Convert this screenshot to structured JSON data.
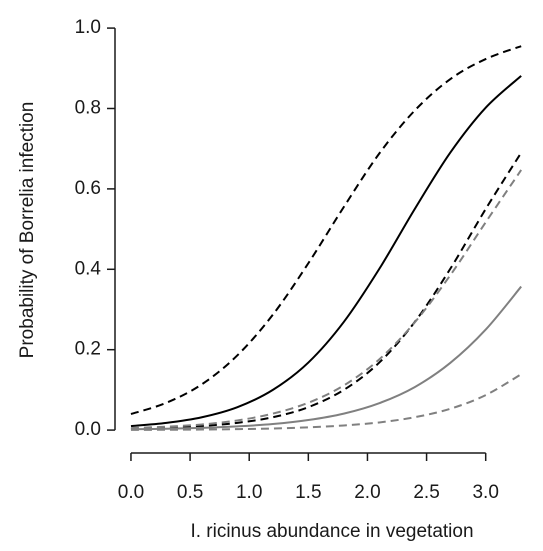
{
  "chart_data": {
    "type": "line",
    "xlabel": "I. ricinus abundance in vegetation",
    "ylabel": "Probability of Borrelia infection",
    "x": [
      0,
      0.3,
      0.6,
      0.9,
      1.2,
      1.5,
      1.8,
      2.1,
      2.4,
      2.7,
      3.0,
      3.3
    ],
    "series": [
      {
        "color": "#000000",
        "dashed": false,
        "values": [
          0.01,
          0.018,
          0.032,
          0.057,
          0.1,
          0.168,
          0.269,
          0.401,
          0.55,
          0.69,
          0.802,
          0.881
        ]
      },
      {
        "color": "#000000",
        "dashed": true,
        "values": [
          0.04,
          0.068,
          0.114,
          0.186,
          0.287,
          0.415,
          0.555,
          0.688,
          0.795,
          0.873,
          0.923,
          0.955
        ]
      },
      {
        "color": "#000000",
        "dashed": true,
        "values": [
          0.003,
          0.0055,
          0.01,
          0.018,
          0.032,
          0.057,
          0.1,
          0.168,
          0.269,
          0.401,
          0.55,
          0.69
        ]
      },
      {
        "color": "#808080",
        "dashed": false,
        "values": [
          0.002,
          0.0034,
          0.0056,
          0.0093,
          0.015,
          0.025,
          0.041,
          0.067,
          0.107,
          0.167,
          0.25,
          0.357
        ]
      },
      {
        "color": "#808080",
        "dashed": true,
        "values": [
          0.005,
          0.0085,
          0.014,
          0.024,
          0.041,
          0.068,
          0.111,
          0.176,
          0.268,
          0.385,
          0.517,
          0.647
        ]
      },
      {
        "color": "#808080",
        "dashed": true,
        "values": [
          0.0005,
          0.0008,
          0.0014,
          0.0024,
          0.004,
          0.0069,
          0.0115,
          0.019,
          0.032,
          0.053,
          0.087,
          0.139
        ]
      }
    ],
    "xlim": [
      -0.135,
      3.4
    ],
    "ylim": [
      -0.057,
      1.045
    ],
    "xticks": [
      {
        "value": 0,
        "label": "0.0"
      },
      0.5,
      {
        "value": 1,
        "label": "1.0"
      },
      1.5,
      {
        "value": 2,
        "label": "2.0"
      },
      2.5,
      {
        "value": 3,
        "label": "3.0"
      }
    ],
    "yticks": [
      {
        "value": 0,
        "label": "0.0"
      },
      0.2,
      0.4,
      0.6,
      0.8,
      {
        "value": 1,
        "label": "1.0"
      }
    ]
  }
}
